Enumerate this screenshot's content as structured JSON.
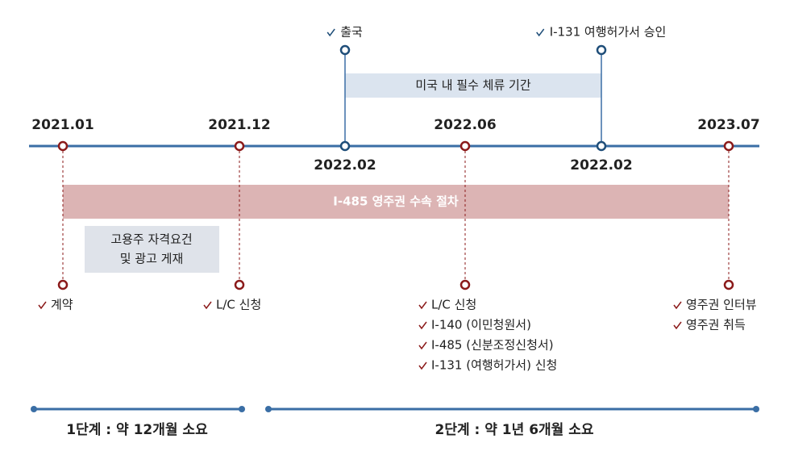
{
  "top_events": [
    "출국",
    "I-131 여행허가서 승인"
  ],
  "stay_band": "미국 내 필수 체류 기간",
  "dates": [
    "2021.01",
    "2021.12",
    "2022.02",
    "2022.06",
    "2022.02",
    "2023.07"
  ],
  "process_band": "I-485 영주권 수속 절차",
  "note": [
    "고용주 자격요건",
    "및 광고 게재"
  ],
  "events": [
    {
      "items": [
        "계약"
      ]
    },
    {
      "items": [
        "L/C 신청"
      ]
    },
    {
      "items": [
        "L/C 신청",
        "I-140 (이민청원서)",
        "I-485 (신분조정신청서)",
        "I-131 (여행허가서) 신청"
      ]
    },
    {
      "items": [
        "영주권 인터뷰",
        "영주권 취득"
      ]
    }
  ],
  "phases": [
    "1단계 : 약 12개월 소요",
    "2단계 : 약 1년 6개월 소요"
  ]
}
